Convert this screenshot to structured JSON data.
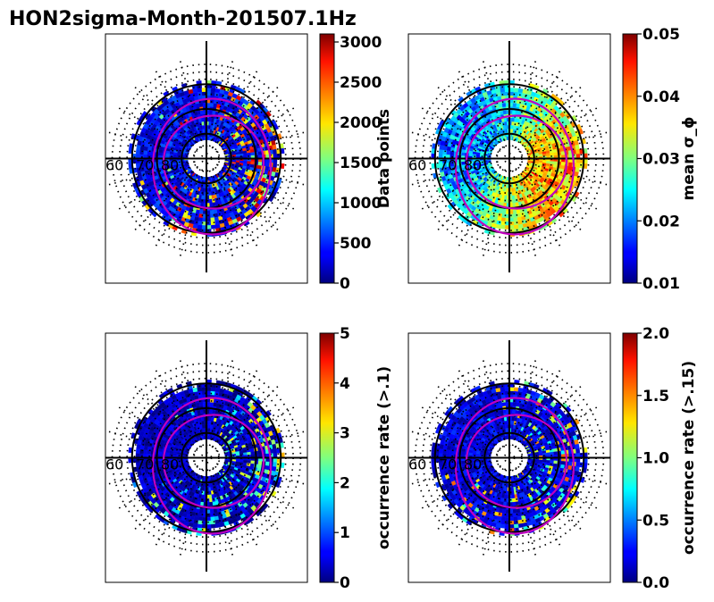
{
  "chart_data": {
    "type": "heatmap",
    "projection": "polar",
    "title": "HON2sigma-Month-201507.1Hz",
    "latitude_labels": [
      "60",
      "70",
      "80"
    ],
    "panels": [
      {
        "name": "data-points",
        "colorbar_label": "Data points",
        "colormap": "jet",
        "vmin": 0,
        "vmax": 3100,
        "ticks": [
          "0",
          "500",
          "1000",
          "1500",
          "2000",
          "2500",
          "3000"
        ],
        "tick_values": [
          0,
          500,
          1000,
          1500,
          2000,
          2500,
          3000
        ]
      },
      {
        "name": "mean-sigma-phi",
        "colorbar_label": "mean σ_ϕ",
        "colormap": "jet",
        "vmin": 0.01,
        "vmax": 0.05,
        "ticks": [
          "0.01",
          "0.02",
          "0.03",
          "0.04",
          "0.05"
        ],
        "tick_values": [
          0.01,
          0.02,
          0.03,
          0.04,
          0.05
        ]
      },
      {
        "name": "occurrence-rate-0.1",
        "colorbar_label": "occurrence rate (>.1)",
        "colormap": "jet",
        "vmin": 0,
        "vmax": 5,
        "ticks": [
          "0",
          "1",
          "2",
          "3",
          "4",
          "5"
        ],
        "tick_values": [
          0,
          1,
          2,
          3,
          4,
          5
        ]
      },
      {
        "name": "occurrence-rate-0.15",
        "colorbar_label": "occurrence rate (>.15)",
        "colormap": "jet",
        "vmin": 0.0,
        "vmax": 2.0,
        "ticks": [
          "0.0",
          "0.5",
          "1.0",
          "1.5",
          "2.0"
        ],
        "tick_values": [
          0.0,
          0.5,
          1.0,
          1.5,
          2.0
        ]
      }
    ]
  }
}
